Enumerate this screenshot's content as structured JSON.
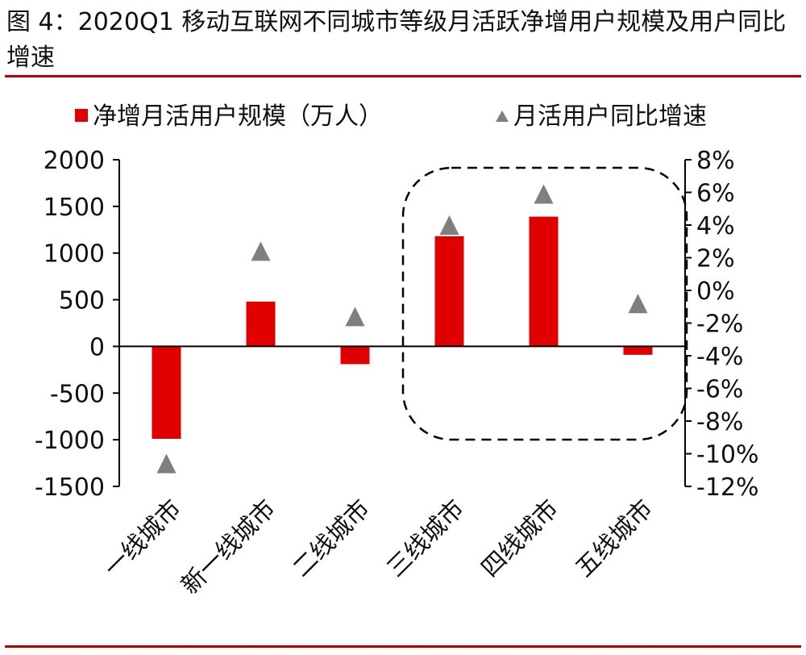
{
  "title": "图 4：2020Q1 移动互联网不同城市等级月活跃净增用户规模及用户同比增速",
  "colors": {
    "bar": "#e00000",
    "marker": "#7f7f7f",
    "rule": "#c00000",
    "axis": "#000000"
  },
  "chart_data": {
    "type": "bar",
    "categories": [
      "一线城市",
      "新一线城市",
      "二线城市",
      "三线城市",
      "四线城市",
      "五线城市"
    ],
    "series": [
      {
        "name": "净增月活用户规模（万人）",
        "type": "bar",
        "axis": "left",
        "values": [
          -990,
          480,
          -190,
          1180,
          1390,
          -90
        ]
      },
      {
        "name": "月活用户同比增速",
        "type": "scatter",
        "marker": "triangle",
        "axis": "right",
        "values": [
          -10.6,
          2.4,
          -1.6,
          4.0,
          5.9,
          -0.8
        ]
      }
    ],
    "y_left": {
      "lim": [
        -1500,
        2000
      ],
      "ticks": [
        "2000",
        "1500",
        "1000",
        "500",
        "0",
        "-500",
        "-1000",
        "-1500"
      ]
    },
    "y_right": {
      "lim": [
        -12,
        8
      ],
      "ticks": [
        "8%",
        "6%",
        "4%",
        "2%",
        "0%",
        "-2%",
        "-4%",
        "-6%",
        "-8%",
        "-10%",
        "-12%"
      ]
    },
    "legend_position": "top",
    "highlight": "dashed rounded box around 三线城市, 四线城市, 五线城市"
  }
}
